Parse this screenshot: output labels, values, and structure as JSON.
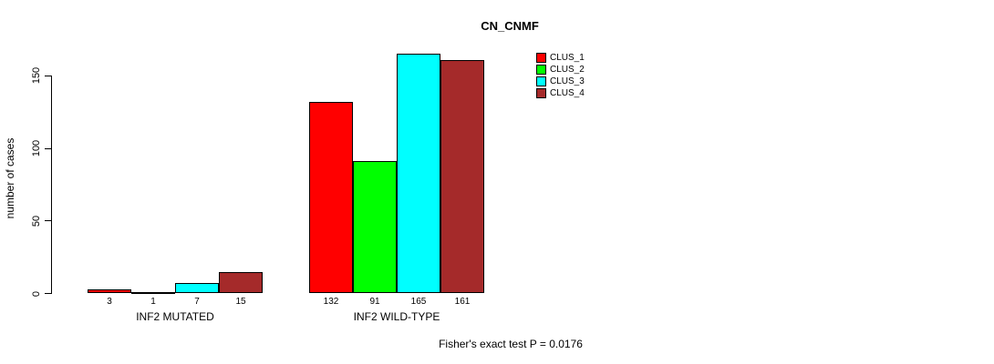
{
  "chart_data": {
    "type": "bar",
    "title": "CN_CNMF",
    "ylabel": "number of cases",
    "xlabel": "",
    "ylim": [
      0,
      165
    ],
    "yticks": [
      0,
      50,
      100,
      150
    ],
    "grid": false,
    "legend_position": "top-right-inside",
    "categories": [
      "INF2 MUTATED",
      "INF2 WILD-TYPE"
    ],
    "series": [
      {
        "name": "CLUS_1",
        "color": "#FF0000",
        "values": [
          3,
          132
        ]
      },
      {
        "name": "CLUS_2",
        "color": "#00FF00",
        "values": [
          1,
          91
        ]
      },
      {
        "name": "CLUS_3",
        "color": "#00FFFF",
        "values": [
          7,
          165
        ]
      },
      {
        "name": "CLUS_4",
        "color": "#A52A2A",
        "values": [
          15,
          161
        ]
      }
    ],
    "bar_value_labels": [
      [
        3,
        1,
        7,
        15
      ],
      [
        132,
        91,
        165,
        161
      ]
    ],
    "annotation": "Fisher's exact test P = 0.0176"
  }
}
